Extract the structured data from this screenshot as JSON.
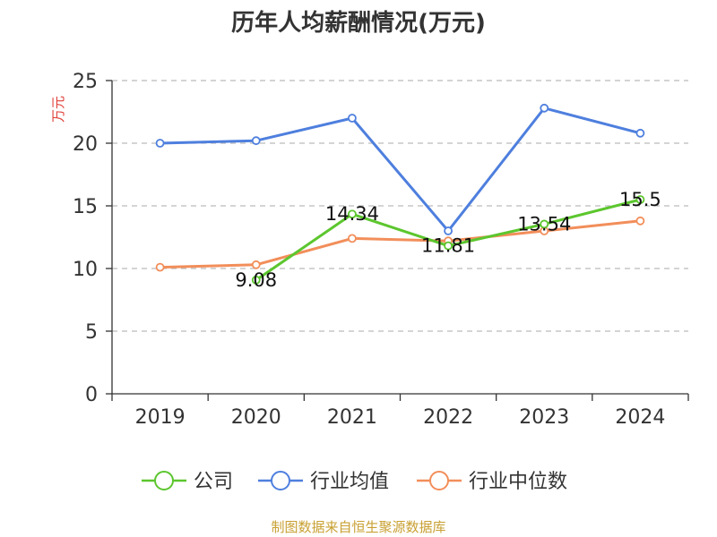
{
  "chart_data": {
    "type": "line",
    "title": "历年人均薪酬情况(万元)",
    "ylabel": "万元",
    "xlabel": "",
    "categories": [
      "2019",
      "2020",
      "2021",
      "2022",
      "2023",
      "2024"
    ],
    "ylim": [
      0,
      25
    ],
    "yticks": [
      0,
      5,
      10,
      15,
      20,
      25
    ],
    "grid": "horizontal dashed",
    "legend_position": "bottom",
    "series": [
      {
        "name": "公司",
        "color": "#5cc62e",
        "values": [
          null,
          9.08,
          14.34,
          11.81,
          13.54,
          15.5
        ],
        "labels": [
          "",
          "9.08",
          "14.34",
          "11.81",
          "13.54",
          "15.5"
        ]
      },
      {
        "name": "行业均值",
        "color": "#4e7fde",
        "values": [
          20.0,
          20.2,
          22.0,
          13.0,
          22.8,
          20.8
        ]
      },
      {
        "name": "行业中位数",
        "color": "#f28e5a",
        "values": [
          10.1,
          10.3,
          12.4,
          12.2,
          13.0,
          13.8
        ]
      }
    ]
  },
  "source_text": "制图数据来自恒生聚源数据库",
  "colors": {
    "title": "#333333",
    "ylabel": "#e0403a",
    "source": "#c8a032",
    "axis": "#333333",
    "grid": "#bbbbbb"
  }
}
